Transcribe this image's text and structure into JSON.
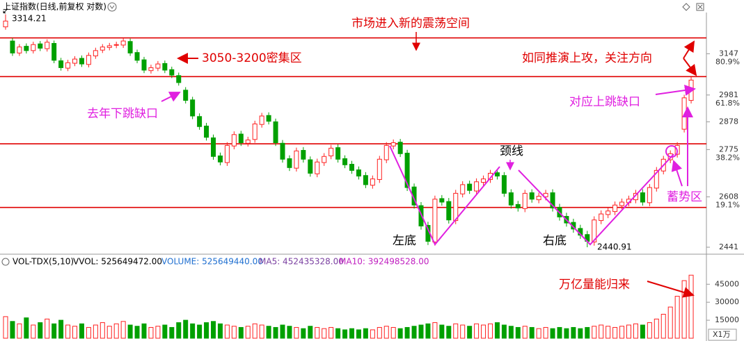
{
  "header": {
    "title": "上证指数(日线,前复权 对数)"
  },
  "chart_data": [
    {
      "type": "candlestick",
      "log_scale": true,
      "ylim": [
        2421,
        3316
      ],
      "yticks": [
        3147,
        2981,
        2878,
        2775,
        2608,
        2441
      ],
      "fib_ticks": [
        {
          "value": 3147,
          "label": "80.9%"
        },
        {
          "value": 2981,
          "label": "61.8%"
        },
        {
          "value": 2775,
          "label": "38.2%"
        },
        {
          "value": 2608,
          "label": "19.1%"
        }
      ],
      "up_color": "#ff2020",
      "down_color": "#00a000",
      "reference_lines": [
        3213,
        3054,
        2796,
        2572
      ],
      "reference_color": "#e00000",
      "annotations": {
        "range": "市场进入新的震荡空间",
        "dense": "3050-3200密集区",
        "attack": "如同推演上攻，关注方向",
        "gap_down": "去年下跳缺口",
        "gap_up": "对应上跳缺口",
        "neckline": "颈线",
        "left_bottom": "左底",
        "right_bottom": "右底",
        "accumulate": "蓄势区",
        "volume_back": "万亿量能归来"
      },
      "open": [
        3260,
        3200,
        3150,
        3178,
        3160,
        3188,
        3168,
        3190,
        3118,
        3088,
        3108,
        3128,
        3103,
        3138,
        3162,
        3173,
        3182,
        3183,
        3198,
        3152,
        3122,
        3078,
        3088,
        3107,
        3082,
        3058,
        3000,
        2962,
        2898,
        2862,
        2818,
        2752,
        2728,
        2788,
        2832,
        2798,
        2812,
        2868,
        2902,
        2878,
        2798,
        2742,
        2708,
        2772,
        2738,
        2688,
        2728,
        2752,
        2782,
        2742,
        2722,
        2702,
        2682,
        2648,
        2668,
        2738,
        2788,
        2802,
        2762,
        2642,
        2578,
        2512,
        2458,
        2602,
        2592,
        2528,
        2618,
        2652,
        2628,
        2658,
        2668,
        2692,
        2682,
        2622,
        2582,
        2568,
        2622,
        2598,
        2608,
        2622,
        2572,
        2542,
        2522,
        2502,
        2482,
        2458,
        2528,
        2548,
        2558,
        2578,
        2588,
        2598,
        2622,
        2588,
        2638,
        2698,
        2738,
        2758,
        2850,
        2960
      ],
      "high": [
        3314.21,
        3212,
        3187,
        3190,
        3197,
        3200,
        3207,
        3202,
        3130,
        3122,
        3137,
        3140,
        3152,
        3172,
        3187,
        3192,
        3197,
        3212,
        3210,
        3164,
        3134,
        3102,
        3117,
        3119,
        3094,
        3070,
        3012,
        2974,
        2910,
        2874,
        2830,
        2764,
        2802,
        2842,
        2844,
        2822,
        2882,
        2912,
        2914,
        2890,
        2810,
        2754,
        2782,
        2784,
        2750,
        2742,
        2762,
        2792,
        2794,
        2754,
        2734,
        2714,
        2694,
        2682,
        2752,
        2802,
        2812,
        2814,
        2774,
        2654,
        2590,
        2524,
        2612,
        2614,
        2604,
        2632,
        2662,
        2664,
        2672,
        2682,
        2702,
        2704,
        2694,
        2634,
        2594,
        2632,
        2634,
        2622,
        2632,
        2634,
        2584,
        2554,
        2534,
        2514,
        2494,
        2542,
        2562,
        2572,
        2592,
        2602,
        2612,
        2632,
        2634,
        2652,
        2712,
        2752,
        2772,
        2802,
        2982,
        3052
      ],
      "low": [
        3248,
        3138,
        3138,
        3148,
        3148,
        3158,
        3156,
        3108,
        3078,
        3076,
        3096,
        3093,
        3091,
        3126,
        3150,
        3161,
        3170,
        3171,
        3138,
        3108,
        3068,
        3066,
        3076,
        3068,
        3048,
        3018,
        2948,
        2888,
        2848,
        2808,
        2738,
        2718,
        2716,
        2776,
        2788,
        2786,
        2800,
        2856,
        2868,
        2788,
        2728,
        2698,
        2696,
        2728,
        2678,
        2676,
        2716,
        2740,
        2728,
        2708,
        2688,
        2668,
        2638,
        2636,
        2656,
        2726,
        2776,
        2748,
        2628,
        2568,
        2498,
        2448,
        2446,
        2578,
        2518,
        2516,
        2606,
        2618,
        2616,
        2646,
        2656,
        2668,
        2608,
        2568,
        2558,
        2556,
        2588,
        2586,
        2596,
        2558,
        2528,
        2508,
        2488,
        2468,
        2440.91,
        2446,
        2516,
        2536,
        2546,
        2566,
        2576,
        2586,
        2578,
        2576,
        2626,
        2686,
        2726,
        2746,
        2838,
        2948
      ],
      "close": [
        3285,
        3150,
        3175,
        3160,
        3185,
        3170,
        3195,
        3120,
        3090,
        3110,
        3125,
        3105,
        3140,
        3160,
        3175,
        3180,
        3185,
        3200,
        3150,
        3120,
        3080,
        3090,
        3105,
        3080,
        3060,
        3030,
        2960,
        2900,
        2860,
        2820,
        2750,
        2730,
        2790,
        2830,
        2800,
        2810,
        2870,
        2900,
        2880,
        2800,
        2740,
        2710,
        2770,
        2740,
        2690,
        2730,
        2750,
        2780,
        2740,
        2720,
        2700,
        2680,
        2650,
        2670,
        2740,
        2790,
        2800,
        2760,
        2640,
        2580,
        2510,
        2460,
        2600,
        2590,
        2530,
        2620,
        2650,
        2630,
        2660,
        2670,
        2690,
        2680,
        2620,
        2580,
        2570,
        2620,
        2600,
        2610,
        2620,
        2570,
        2540,
        2520,
        2500,
        2480,
        2460,
        2530,
        2550,
        2560,
        2580,
        2590,
        2600,
        2620,
        2590,
        2640,
        2700,
        2740,
        2760,
        2790,
        2970,
        3040
      ]
    },
    {
      "type": "volume",
      "indicator": "VOL-TDX(5,10)",
      "vvol": "VVOL: 525649472.00",
      "volume": "VOLUME: 525649440.00",
      "ma5": "MA5: 452435328.00",
      "ma10": "MA10: 392498528.00",
      "unit": "X1万",
      "ylim": [
        0,
        55000
      ],
      "yticks": [
        15000,
        30000,
        45000
      ],
      "values": [
        18000,
        14000,
        12000,
        17000,
        11000,
        13000,
        16000,
        12000,
        15000,
        11000,
        10000,
        12000,
        9000,
        11000,
        13000,
        10000,
        12000,
        14000,
        11000,
        10000,
        12000,
        9000,
        10000,
        11000,
        9000,
        13000,
        15000,
        12000,
        11000,
        13000,
        14000,
        12000,
        11000,
        10000,
        9000,
        10000,
        12000,
        11000,
        10000,
        9000,
        11000,
        10000,
        9000,
        8000,
        10000,
        9000,
        8000,
        9000,
        8000,
        7000,
        8000,
        7000,
        8000,
        7000,
        9000,
        10000,
        9000,
        8000,
        9000,
        10000,
        11000,
        12000,
        13000,
        11000,
        10000,
        12000,
        11000,
        10000,
        12000,
        11000,
        12000,
        13000,
        11000,
        10000,
        9000,
        10000,
        9000,
        8000,
        9000,
        8000,
        9000,
        8000,
        9000,
        8000,
        9000,
        10000,
        11000,
        10000,
        9000,
        10000,
        11000,
        12000,
        11000,
        13000,
        16000,
        20000,
        26000,
        35000,
        48000,
        52565
      ]
    }
  ]
}
